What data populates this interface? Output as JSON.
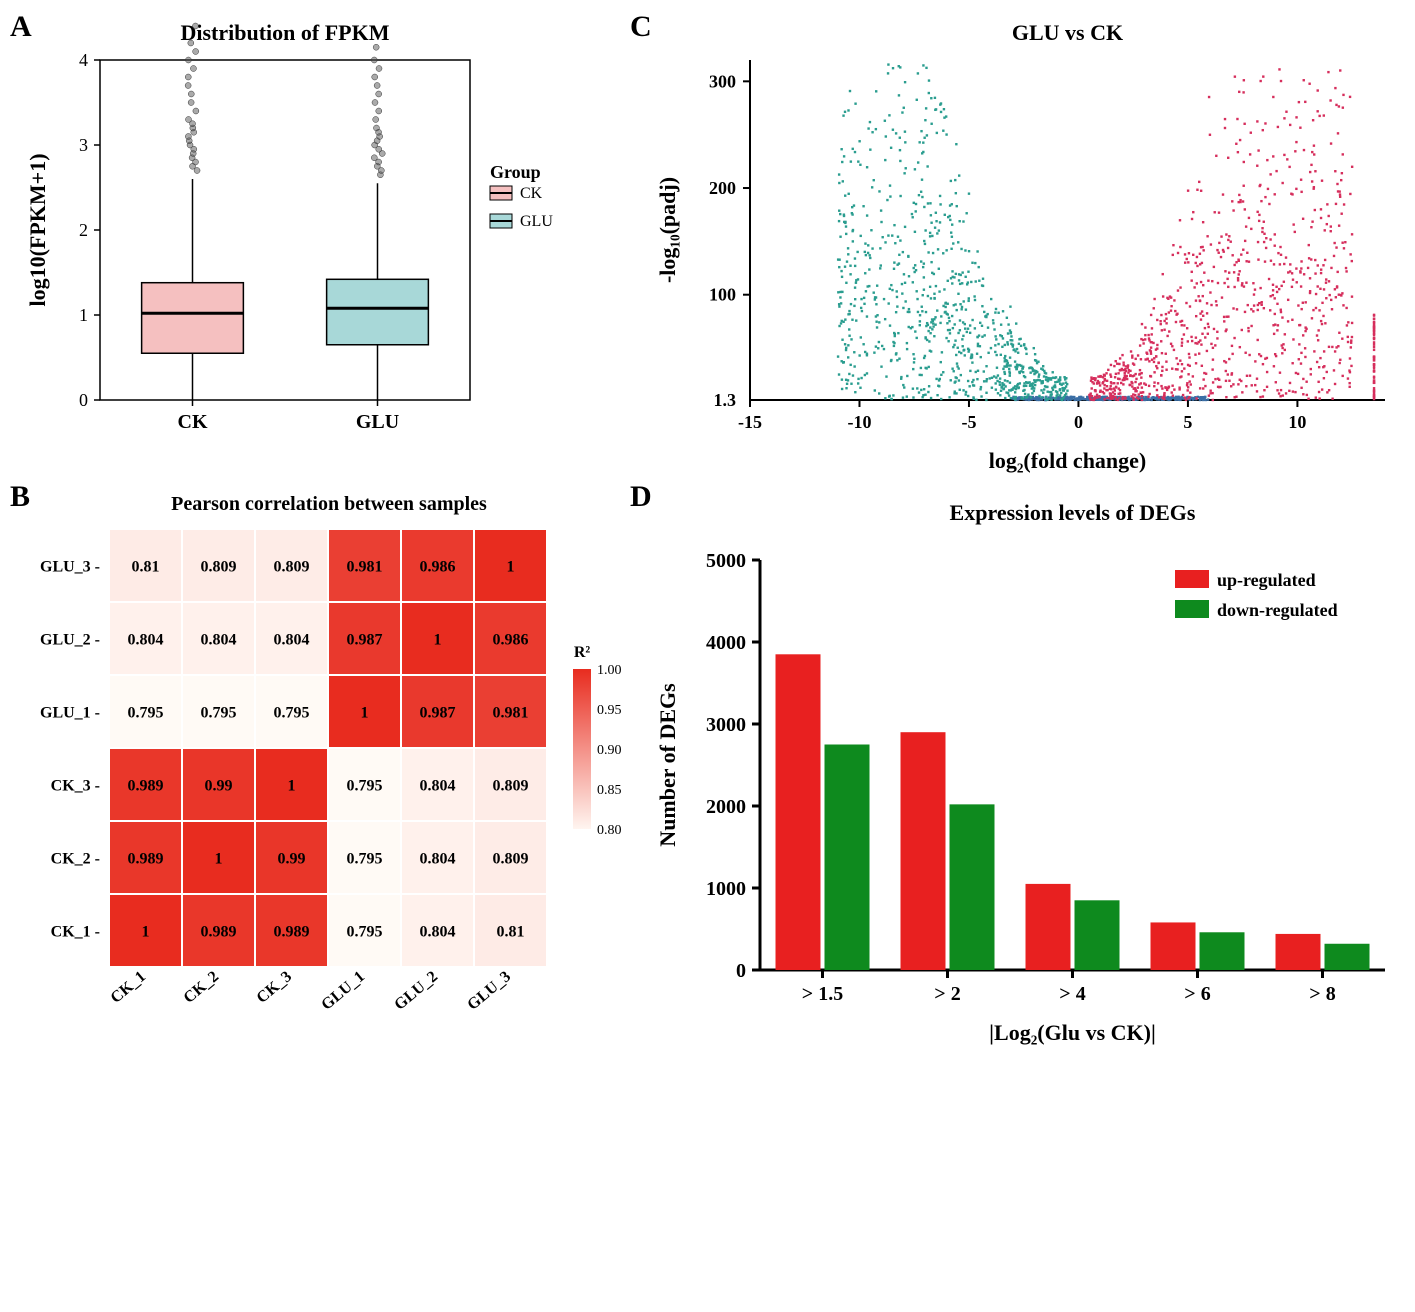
{
  "panelA": {
    "label": "A",
    "title": "Distribution of FPKM",
    "title_fontsize": 22,
    "ylabel": "log10(FPKM+1)",
    "label_fontsize": 22,
    "ylim": [
      0,
      4
    ],
    "ytick_step": 1,
    "categories": [
      "CK",
      "GLU"
    ],
    "boxes": [
      {
        "q1": 0.55,
        "median": 1.02,
        "q3": 1.38,
        "whisker_low": 0,
        "whisker_high": 2.6,
        "color": "#f5c0c0",
        "outliers": [
          2.7,
          2.75,
          2.8,
          2.85,
          2.9,
          2.95,
          3.0,
          3.05,
          3.1,
          3.15,
          3.2,
          3.25,
          3.3,
          3.4,
          3.5,
          3.6,
          3.7,
          3.8,
          3.9,
          4.0,
          4.1,
          4.2,
          4.4
        ]
      },
      {
        "q1": 0.65,
        "median": 1.08,
        "q3": 1.42,
        "whisker_low": 0,
        "whisker_high": 2.55,
        "color": "#a8d8d8",
        "outliers": [
          2.65,
          2.7,
          2.75,
          2.8,
          2.85,
          2.9,
          2.95,
          3.0,
          3.05,
          3.1,
          3.15,
          3.2,
          3.3,
          3.4,
          3.5,
          3.6,
          3.7,
          3.8,
          3.9,
          4.0,
          4.15
        ]
      }
    ],
    "legend": {
      "title": "Group",
      "items": [
        {
          "label": "CK",
          "color": "#f5c0c0"
        },
        {
          "label": "GLU",
          "color": "#a8d8d8"
        }
      ]
    },
    "background_color": "#ffffff",
    "border_color": "#000000"
  },
  "panelB": {
    "label": "B",
    "title": "Pearson correlation between samples",
    "title_fontsize": 20,
    "row_labels": [
      "GLU_3",
      "GLU_2",
      "GLU_1",
      "CK_3",
      "CK_2",
      "CK_1"
    ],
    "col_labels": [
      "CK_1",
      "CK_2",
      "CK_3",
      "GLU_1",
      "GLU_2",
      "GLU_3"
    ],
    "values": [
      [
        0.81,
        0.809,
        0.809,
        0.981,
        0.986,
        1
      ],
      [
        0.804,
        0.804,
        0.804,
        0.987,
        1,
        0.986
      ],
      [
        0.795,
        0.795,
        0.795,
        1,
        0.987,
        0.981
      ],
      [
        0.989,
        0.99,
        1,
        0.795,
        0.804,
        0.809
      ],
      [
        0.989,
        1,
        0.99,
        0.795,
        0.804,
        0.809
      ],
      [
        1,
        0.989,
        0.989,
        0.795,
        0.804,
        0.81
      ]
    ],
    "color_scale": {
      "min": 0.8,
      "max": 1.0,
      "low_color": "#fff5f0",
      "high_color": "#e82c1f"
    },
    "legend_label": "R²",
    "legend_ticks": [
      1.0,
      0.95,
      0.9,
      0.85,
      0.8
    ],
    "cell_fontsize": 16
  },
  "panelC": {
    "label": "C",
    "title": "GLU vs CK",
    "title_fontsize": 22,
    "xlabel": "log₂(fold change)",
    "ylabel": "-log₁₀(padj)",
    "label_fontsize": 22,
    "xlim": [
      -15,
      14
    ],
    "ylim": [
      1.3,
      320
    ],
    "xticks": [
      -15,
      -10,
      -5,
      0,
      5,
      10
    ],
    "yticks": [
      100,
      200,
      300
    ],
    "threshold_y": 1.3,
    "colors": {
      "down": "#2a9d8f",
      "up": "#d62e5c",
      "ns": "#3a6ea5"
    },
    "background_color": "#ffffff"
  },
  "panelD": {
    "label": "D",
    "title": "Expression levels of DEGs",
    "title_fontsize": 22,
    "xlabel": "|Log₂(Glu vs CK)|",
    "ylabel": "Number of DEGs",
    "label_fontsize": 22,
    "categories": [
      "> 1.5",
      "> 2",
      "> 4",
      "> 6",
      "> 8"
    ],
    "series": [
      {
        "name": "up-regulated",
        "color": "#e82020",
        "values": [
          3850,
          2900,
          1050,
          580,
          440
        ]
      },
      {
        "name": "down-regulated",
        "color": "#0e8a1e",
        "values": [
          2750,
          2020,
          850,
          460,
          320
        ]
      }
    ],
    "ylim": [
      0,
      5000
    ],
    "ytick_step": 1000,
    "bar_width": 0.4
  }
}
